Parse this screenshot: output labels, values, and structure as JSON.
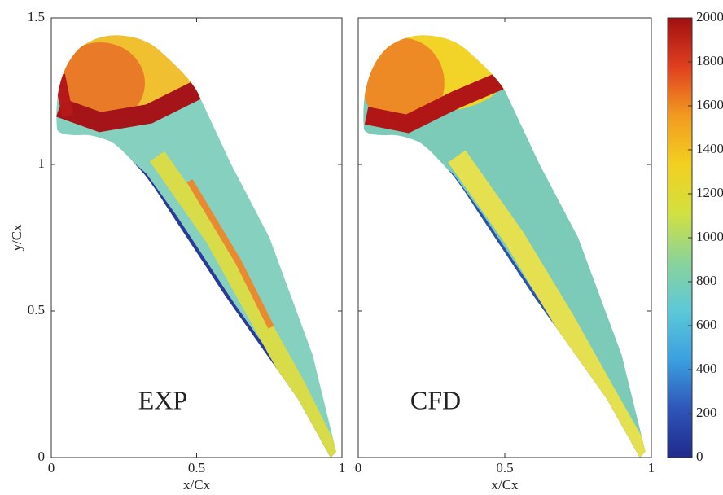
{
  "chart_data": [
    {
      "type": "contour",
      "annotation": "EXP",
      "xlabel": "x/Cx",
      "ylabel": "y/Cx",
      "xlim": [
        0,
        1
      ],
      "ylim": [
        0,
        1.5
      ],
      "xticks": [
        0,
        0.5,
        1
      ],
      "yticks": [
        0,
        0.5,
        1,
        1.5
      ],
      "ytick_labels": true
    },
    {
      "type": "contour",
      "annotation": "CFD",
      "xlabel": "x/Cx",
      "xlim": [
        0,
        1
      ],
      "ylim": [
        0,
        1.5
      ],
      "xticks": [
        0,
        0.5,
        1
      ],
      "yticks": [
        0,
        0.5,
        1,
        1.5
      ],
      "ytick_labels": false,
      "colorbar": {
        "lim": [
          0,
          2000
        ],
        "ticks": [
          0,
          200,
          400,
          600,
          800,
          1000,
          1200,
          1400,
          1600,
          1800,
          2000
        ],
        "colors": [
          "#1f2a8c",
          "#2f55b8",
          "#3aa0e0",
          "#5cc8d8",
          "#8ad39a",
          "#d2e040",
          "#f2d020",
          "#f29a20",
          "#e04020",
          "#a01010"
        ]
      }
    }
  ]
}
